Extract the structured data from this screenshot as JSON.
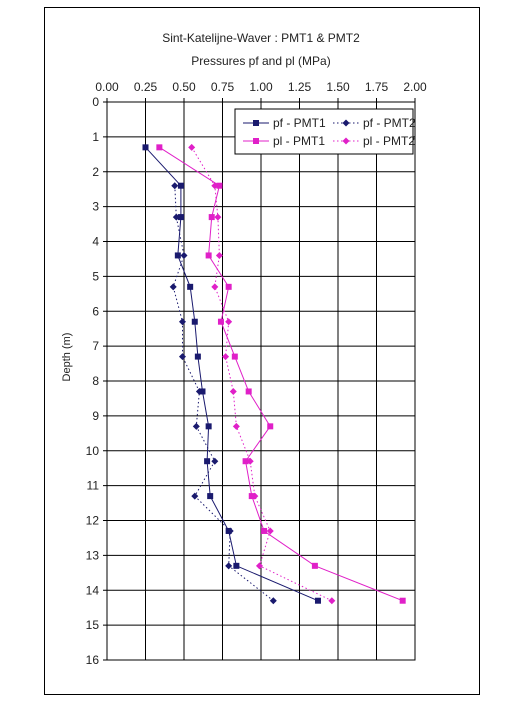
{
  "chart_data": {
    "type": "line",
    "title": "Sint-Katelijne-Waver : PMT1 & PMT2",
    "subtitle": "Pressures pf and pl (MPa)",
    "xlabel": "Pressures pf and pl (MPa)",
    "ylabel": "Depth (m)",
    "xlim": [
      0,
      2
    ],
    "ylim": [
      16,
      0
    ],
    "x_ticks": [
      "0.00",
      "0.25",
      "0.50",
      "0.75",
      "1.00",
      "1.25",
      "1.50",
      "1.75",
      "2.00"
    ],
    "y_ticks": [
      "0",
      "1",
      "2",
      "3",
      "4",
      "5",
      "6",
      "7",
      "8",
      "9",
      "10",
      "11",
      "12",
      "13",
      "14",
      "15",
      "16"
    ],
    "x_axis_position": "top",
    "grid": true,
    "legend_position": "top-right",
    "series": [
      {
        "name": "pf - PMT1",
        "color": "#1a1a6e",
        "line": "solid",
        "marker": "square",
        "points": [
          {
            "x": 0.25,
            "y": 1.3
          },
          {
            "x": 0.48,
            "y": 2.4
          },
          {
            "x": 0.48,
            "y": 3.3
          },
          {
            "x": 0.46,
            "y": 4.4
          },
          {
            "x": 0.54,
            "y": 5.3
          },
          {
            "x": 0.57,
            "y": 6.3
          },
          {
            "x": 0.59,
            "y": 7.3
          },
          {
            "x": 0.62,
            "y": 8.3
          },
          {
            "x": 0.66,
            "y": 9.3
          },
          {
            "x": 0.65,
            "y": 10.3
          },
          {
            "x": 0.67,
            "y": 11.3
          },
          {
            "x": 0.79,
            "y": 12.3
          },
          {
            "x": 0.84,
            "y": 13.3
          },
          {
            "x": 1.37,
            "y": 14.3
          }
        ]
      },
      {
        "name": "pf - PMT2",
        "color": "#1a1a6e",
        "line": "dotted",
        "marker": "diamond",
        "points": [
          {
            "x": 0.44,
            "y": 2.4
          },
          {
            "x": 0.45,
            "y": 3.3
          },
          {
            "x": 0.5,
            "y": 4.4
          },
          {
            "x": 0.43,
            "y": 5.3
          },
          {
            "x": 0.49,
            "y": 6.3
          },
          {
            "x": 0.49,
            "y": 7.3
          },
          {
            "x": 0.6,
            "y": 8.3
          },
          {
            "x": 0.58,
            "y": 9.3
          },
          {
            "x": 0.7,
            "y": 10.3
          },
          {
            "x": 0.57,
            "y": 11.3
          },
          {
            "x": 0.8,
            "y": 12.3
          },
          {
            "x": 0.79,
            "y": 13.3
          },
          {
            "x": 1.08,
            "y": 14.3
          }
        ]
      },
      {
        "name": "pl - PMT1",
        "color": "#e020c8",
        "line": "solid",
        "marker": "square",
        "points": [
          {
            "x": 0.34,
            "y": 1.3
          },
          {
            "x": 0.73,
            "y": 2.4
          },
          {
            "x": 0.68,
            "y": 3.3
          },
          {
            "x": 0.66,
            "y": 4.4
          },
          {
            "x": 0.79,
            "y": 5.3
          },
          {
            "x": 0.74,
            "y": 6.3
          },
          {
            "x": 0.83,
            "y": 7.3
          },
          {
            "x": 0.92,
            "y": 8.3
          },
          {
            "x": 1.06,
            "y": 9.3
          },
          {
            "x": 0.9,
            "y": 10.3
          },
          {
            "x": 0.94,
            "y": 11.3
          },
          {
            "x": 1.02,
            "y": 12.3
          },
          {
            "x": 1.35,
            "y": 13.3
          },
          {
            "x": 1.92,
            "y": 14.3
          }
        ]
      },
      {
        "name": "pl - PMT2",
        "color": "#e020c8",
        "line": "dotted",
        "marker": "diamond",
        "points": [
          {
            "x": 0.55,
            "y": 1.3
          },
          {
            "x": 0.7,
            "y": 2.4
          },
          {
            "x": 0.72,
            "y": 3.3
          },
          {
            "x": 0.73,
            "y": 4.4
          },
          {
            "x": 0.7,
            "y": 5.3
          },
          {
            "x": 0.79,
            "y": 6.3
          },
          {
            "x": 0.77,
            "y": 7.3
          },
          {
            "x": 0.82,
            "y": 8.3
          },
          {
            "x": 0.84,
            "y": 9.3
          },
          {
            "x": 0.93,
            "y": 10.3
          },
          {
            "x": 0.96,
            "y": 11.3
          },
          {
            "x": 1.06,
            "y": 12.3
          },
          {
            "x": 0.99,
            "y": 13.3
          },
          {
            "x": 1.46,
            "y": 14.3
          }
        ]
      }
    ]
  }
}
